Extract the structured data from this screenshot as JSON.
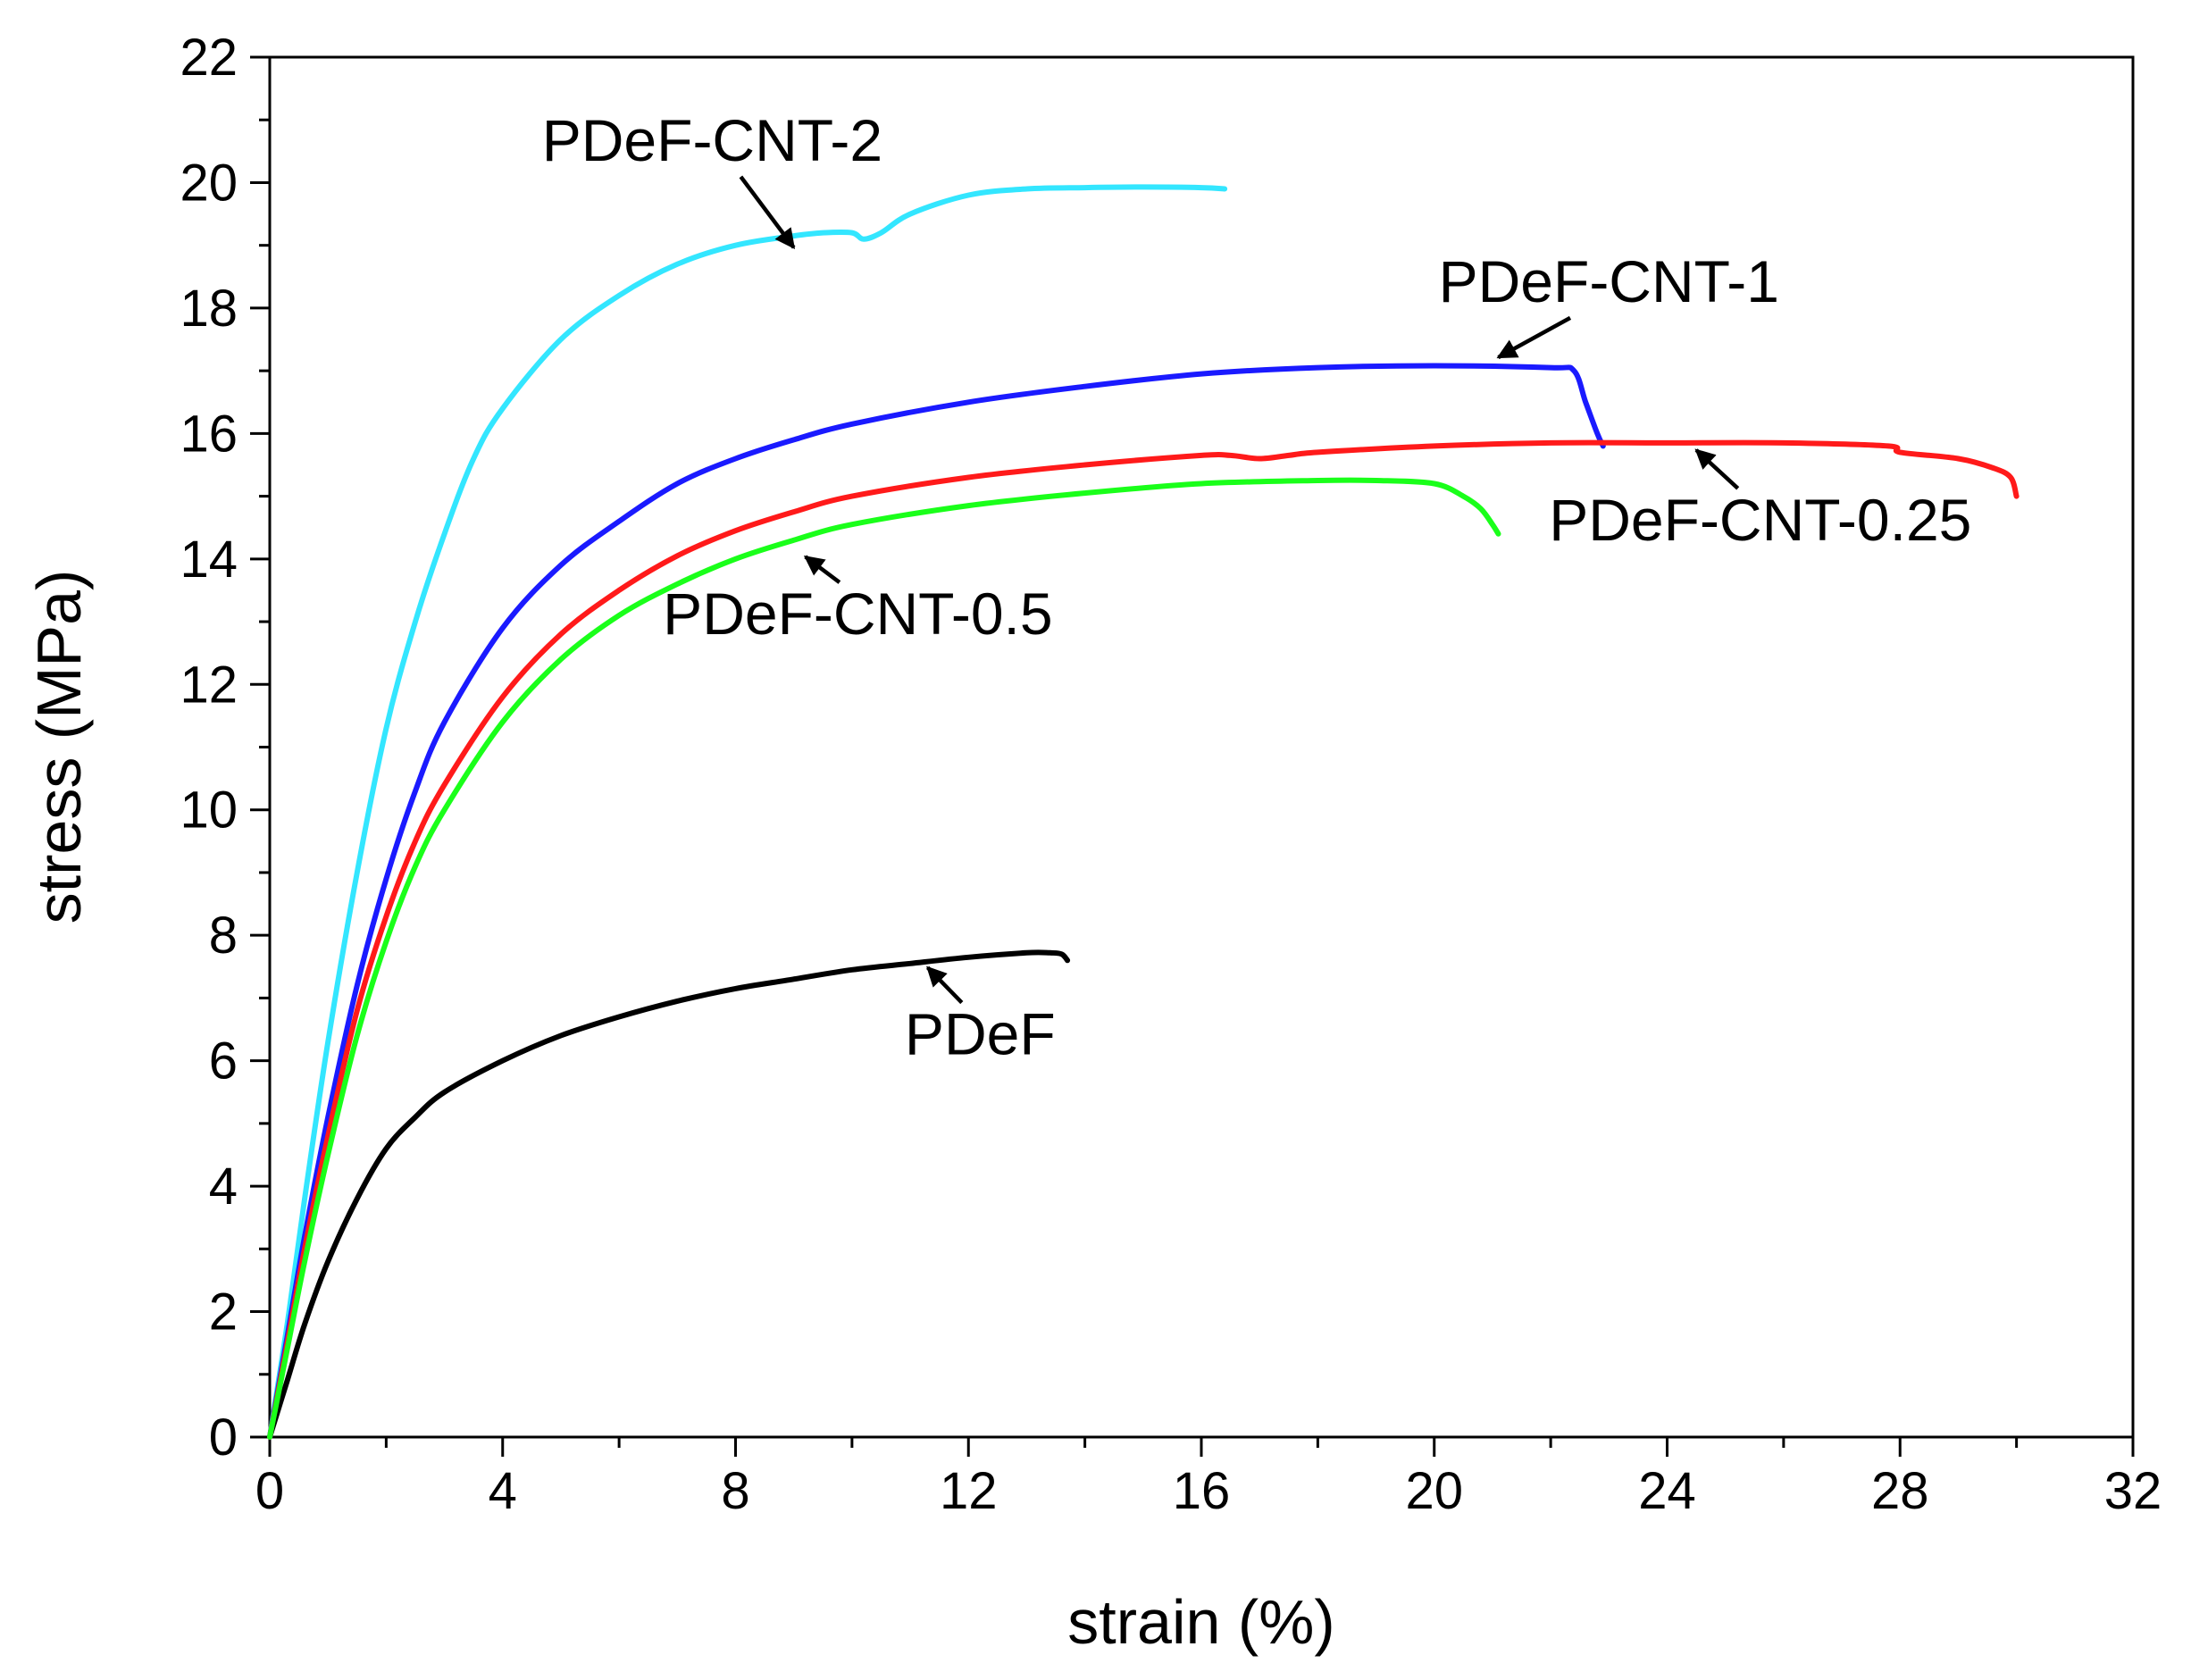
{
  "chart_data": {
    "type": "line",
    "title": "",
    "xlabel": "strain (%)",
    "ylabel": "stress (MPa)",
    "xlim": [
      0,
      32
    ],
    "ylim": [
      0,
      22
    ],
    "xticks": [
      0,
      4,
      8,
      12,
      16,
      20,
      24,
      28,
      32
    ],
    "yticks": [
      0,
      2,
      4,
      6,
      8,
      10,
      12,
      14,
      16,
      18,
      20,
      22
    ],
    "grid": false,
    "legend": "none",
    "series": [
      {
        "name": "PDeF",
        "color": "#000000",
        "x": [
          0,
          0.3,
          0.6,
          1,
          1.5,
          2,
          2.5,
          3,
          4,
          5,
          6,
          7,
          8,
          9,
          10,
          11,
          12,
          13,
          13.4,
          13.6,
          13.7
        ],
        "y": [
          0,
          0.9,
          1.8,
          2.8,
          3.8,
          4.6,
          5.1,
          5.5,
          6.0,
          6.4,
          6.7,
          6.95,
          7.15,
          7.3,
          7.45,
          7.55,
          7.65,
          7.72,
          7.72,
          7.7,
          7.6
        ]
      },
      {
        "name": "PDeF-CNT-2",
        "color": "#33e6ff",
        "x": [
          0,
          0.3,
          0.6,
          1,
          1.5,
          2,
          2.5,
          3,
          3.5,
          4,
          5,
          6,
          7,
          8,
          9,
          9.5,
          10,
          10.2,
          10.5,
          11,
          12,
          13,
          14,
          15,
          16,
          16.4
        ],
        "y": [
          0,
          1.8,
          3.8,
          6.3,
          9.0,
          11.3,
          13.0,
          14.4,
          15.6,
          16.4,
          17.5,
          18.2,
          18.7,
          19.0,
          19.15,
          19.2,
          19.2,
          19.1,
          19.2,
          19.5,
          19.8,
          19.9,
          19.92,
          19.93,
          19.92,
          19.9
        ]
      },
      {
        "name": "PDeF-CNT-1",
        "color": "#1a1aff",
        "x": [
          0,
          0.3,
          0.6,
          1,
          1.5,
          2,
          2.5,
          3,
          4,
          5,
          6,
          7,
          8,
          9,
          10,
          12,
          14,
          16,
          18,
          20,
          22,
          22.4,
          22.6,
          22.8,
          22.9
        ],
        "y": [
          0,
          1.6,
          3.2,
          5.1,
          7.2,
          8.9,
          10.3,
          11.4,
          12.9,
          13.9,
          14.6,
          15.2,
          15.6,
          15.9,
          16.15,
          16.5,
          16.75,
          16.95,
          17.05,
          17.08,
          17.05,
          17.0,
          16.5,
          16.0,
          15.8
        ]
      },
      {
        "name": "PDeF-CNT-0.25",
        "color": "#ff1a1a",
        "x": [
          0,
          0.3,
          0.6,
          1,
          1.5,
          2,
          2.5,
          3,
          4,
          5,
          6,
          7,
          8,
          9,
          10,
          12,
          14,
          16,
          16.5,
          17,
          17.5,
          18,
          20,
          22,
          24,
          26,
          27.8,
          28,
          29,
          29.6,
          29.9,
          30
        ],
        "y": [
          0,
          1.5,
          3.0,
          4.8,
          6.8,
          8.3,
          9.5,
          10.4,
          11.8,
          12.8,
          13.5,
          14.05,
          14.45,
          14.75,
          15.0,
          15.3,
          15.5,
          15.65,
          15.65,
          15.6,
          15.65,
          15.7,
          15.8,
          15.85,
          15.85,
          15.85,
          15.8,
          15.7,
          15.6,
          15.45,
          15.3,
          15.0
        ]
      },
      {
        "name": "PDeF-CNT-0.5",
        "color": "#1aff1a",
        "x": [
          0,
          0.3,
          0.6,
          1,
          1.5,
          2,
          2.5,
          3,
          4,
          5,
          6,
          7,
          8,
          9,
          10,
          12,
          14,
          16,
          18,
          19,
          20,
          20.5,
          20.8,
          21,
          21.1
        ],
        "y": [
          0,
          1.4,
          2.8,
          4.5,
          6.4,
          7.9,
          9.1,
          10.0,
          11.4,
          12.4,
          13.1,
          13.6,
          14.0,
          14.3,
          14.55,
          14.85,
          15.05,
          15.2,
          15.25,
          15.25,
          15.2,
          15.0,
          14.8,
          14.55,
          14.4
        ]
      }
    ],
    "annotations": [
      {
        "text": "PDeF-CNT-2",
        "series": "PDeF-CNT-2",
        "point": [
          9.0,
          18.85
        ],
        "label_at": [
          7.6,
          20.35
        ]
      },
      {
        "text": "PDeF-CNT-1",
        "series": "PDeF-CNT-1",
        "point": [
          21.1,
          17.1
        ],
        "label_at": [
          23.0,
          18.1
        ]
      },
      {
        "text": "PDeF-CNT-0.25",
        "series": "PDeF-CNT-0.25",
        "point": [
          24.5,
          15.85
        ],
        "label_at": [
          25.6,
          14.3
        ]
      },
      {
        "text": "PDeF-CNT-0.5",
        "series": "PDeF-CNT-0.5",
        "point": [
          9.2,
          14.15
        ],
        "label_at": [
          10.1,
          12.8
        ]
      },
      {
        "text": "PDeF",
        "series": "PDeF",
        "point": [
          11.3,
          7.6
        ],
        "label_at": [
          12.2,
          6.1
        ]
      }
    ]
  }
}
